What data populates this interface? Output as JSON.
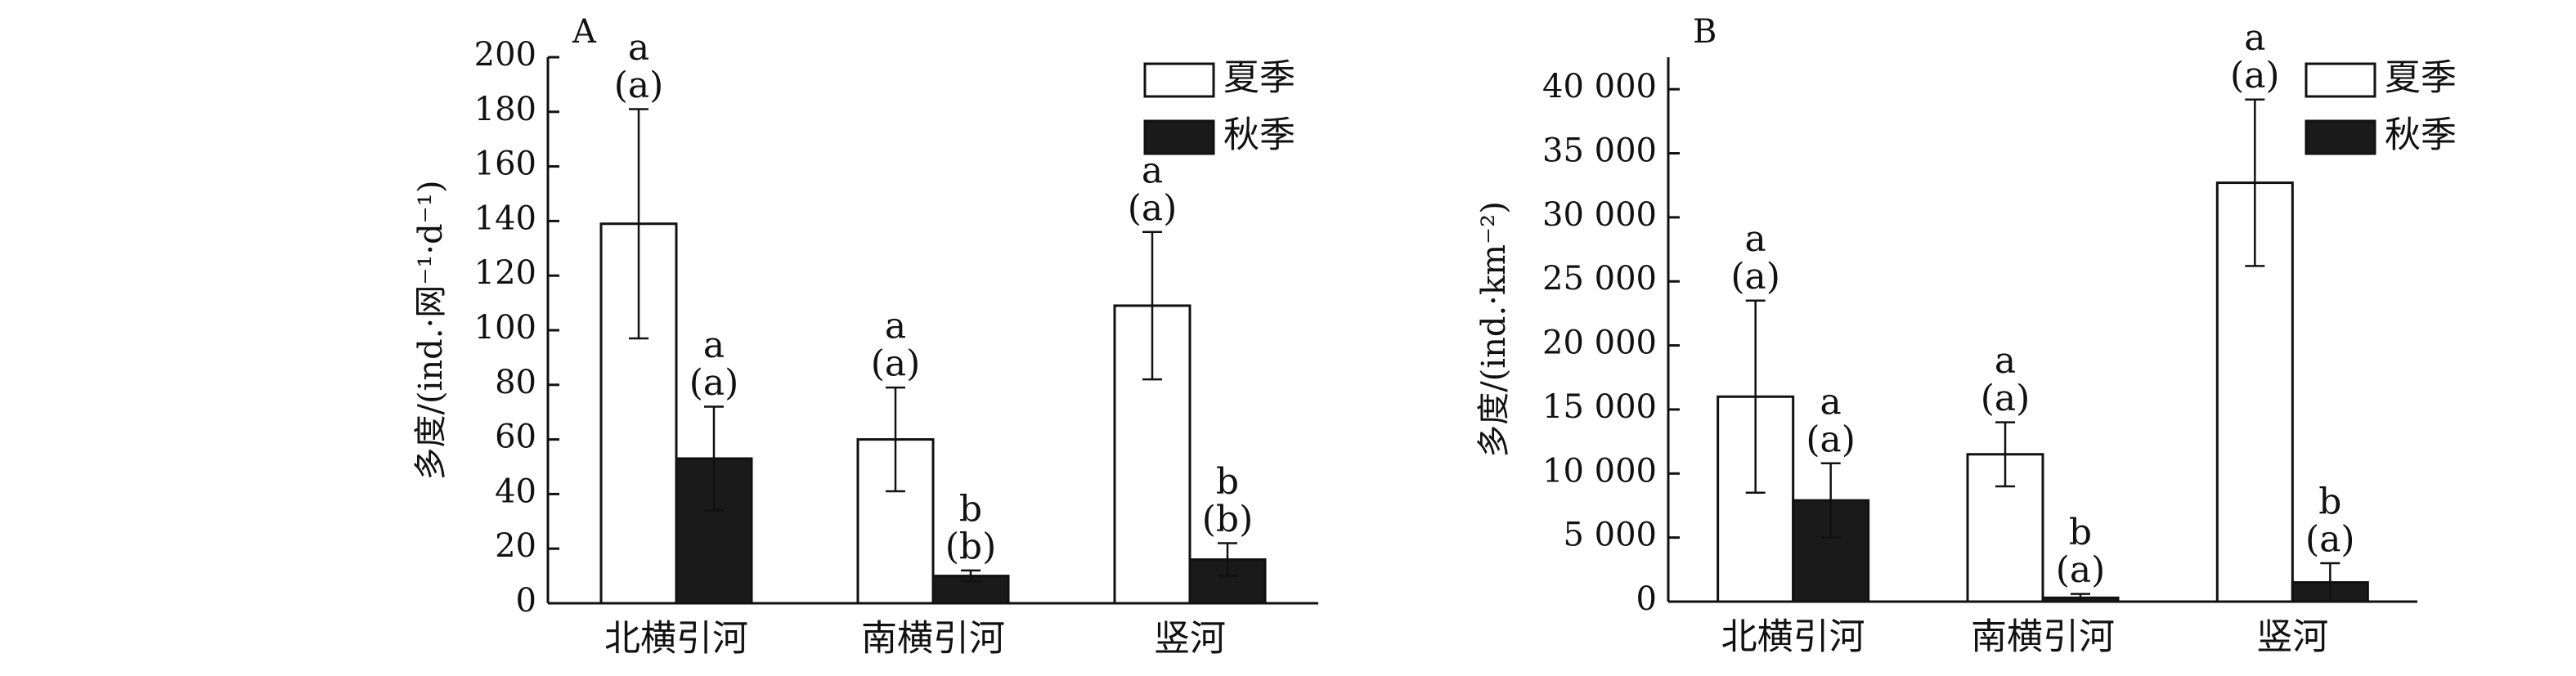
{
  "chart_data": [
    {
      "type": "bar",
      "panel_label": "A",
      "ylabel": "多度/(ind.·网⁻¹·d⁻¹)",
      "categories": [
        "北横引河",
        "南横引河",
        "竖河"
      ],
      "series": [
        {
          "name": "夏季",
          "color": "#ffffff",
          "values": [
            139,
            60,
            109
          ],
          "errors": [
            42,
            19,
            27
          ],
          "annotations": [
            [
              "a",
              "(a)"
            ],
            [
              "a",
              "(a)"
            ],
            [
              "a",
              "(a)"
            ]
          ]
        },
        {
          "name": "秋季",
          "color": "#1a1a1a",
          "values": [
            53,
            10,
            16
          ],
          "errors": [
            19,
            2,
            6
          ],
          "annotations": [
            [
              "a",
              "(a)"
            ],
            [
              "b",
              "(b)"
            ],
            [
              "b",
              "(b)"
            ]
          ]
        }
      ],
      "ylim": [
        0,
        200
      ],
      "yticks": [
        0,
        20,
        40,
        60,
        80,
        100,
        120,
        140,
        160,
        180,
        200
      ],
      "legend": "upper right"
    },
    {
      "type": "bar",
      "panel_label": "B",
      "ylabel": "多度/(ind.·km⁻²)",
      "categories": [
        "北横引河",
        "南横引河",
        "竖河"
      ],
      "series": [
        {
          "name": "夏季",
          "color": "#ffffff",
          "values": [
            16000,
            11500,
            32700
          ],
          "errors": [
            7500,
            2500,
            6500
          ],
          "annotations": [
            [
              "a",
              "(a)"
            ],
            [
              "a",
              "(a)"
            ],
            [
              "a",
              "(a)"
            ]
          ]
        },
        {
          "name": "秋季",
          "color": "#1a1a1a",
          "values": [
            7900,
            300,
            1500
          ],
          "errors": [
            2900,
            300,
            1500
          ],
          "annotations": [
            [
              "a",
              "(a)"
            ],
            [
              "b",
              "(a)"
            ],
            [
              "b",
              "(a)"
            ]
          ]
        }
      ],
      "ylim": [
        0,
        42500
      ],
      "yticks": [
        0,
        {
          "value": 5000,
          "label": "5 000"
        },
        {
          "value": 10000,
          "label": "10 000"
        },
        {
          "value": 15000,
          "label": "15 000"
        },
        {
          "value": 20000,
          "label": "20 000"
        },
        {
          "value": 25000,
          "label": "25 000"
        },
        {
          "value": 30000,
          "label": "30 000"
        },
        {
          "value": 35000,
          "label": "35 000"
        },
        {
          "value": 40000,
          "label": "40 000"
        }
      ],
      "legend": "upper right"
    }
  ]
}
